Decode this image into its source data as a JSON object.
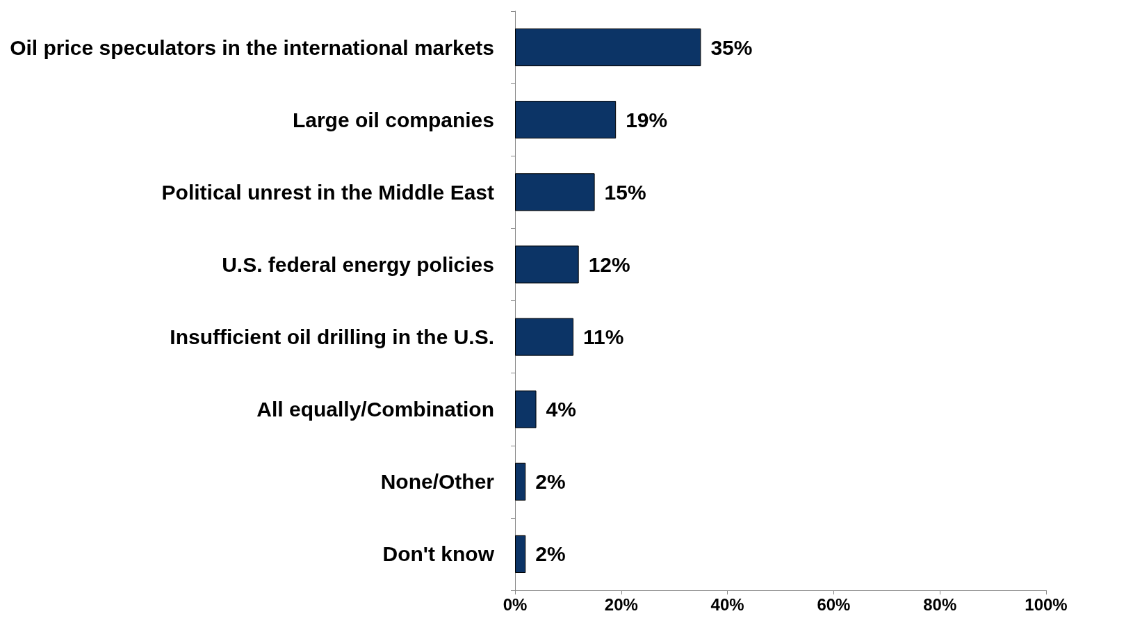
{
  "chart_data": {
    "type": "bar",
    "orientation": "horizontal",
    "categories": [
      "Oil price speculators in the international markets",
      "Large oil companies",
      "Political unrest in the Middle East",
      "U.S. federal energy policies",
      "Insufficient oil drilling in the U.S.",
      "All equally/Combination",
      "None/Other",
      "Don't know"
    ],
    "values": [
      35,
      19,
      15,
      12,
      11,
      4,
      2,
      2
    ],
    "value_labels": [
      "35%",
      "19%",
      "15%",
      "12%",
      "11%",
      "4%",
      "2%",
      "2%"
    ],
    "color": "#0c3466",
    "xlim": [
      0,
      100
    ],
    "xticks": [
      {
        "value": 0,
        "label": "0%"
      },
      {
        "value": 20,
        "label": "20%"
      },
      {
        "value": 40,
        "label": "40%"
      },
      {
        "value": 60,
        "label": "60%"
      },
      {
        "value": 80,
        "label": "80%"
      },
      {
        "value": 100,
        "label": "100%"
      }
    ],
    "grid": false
  }
}
